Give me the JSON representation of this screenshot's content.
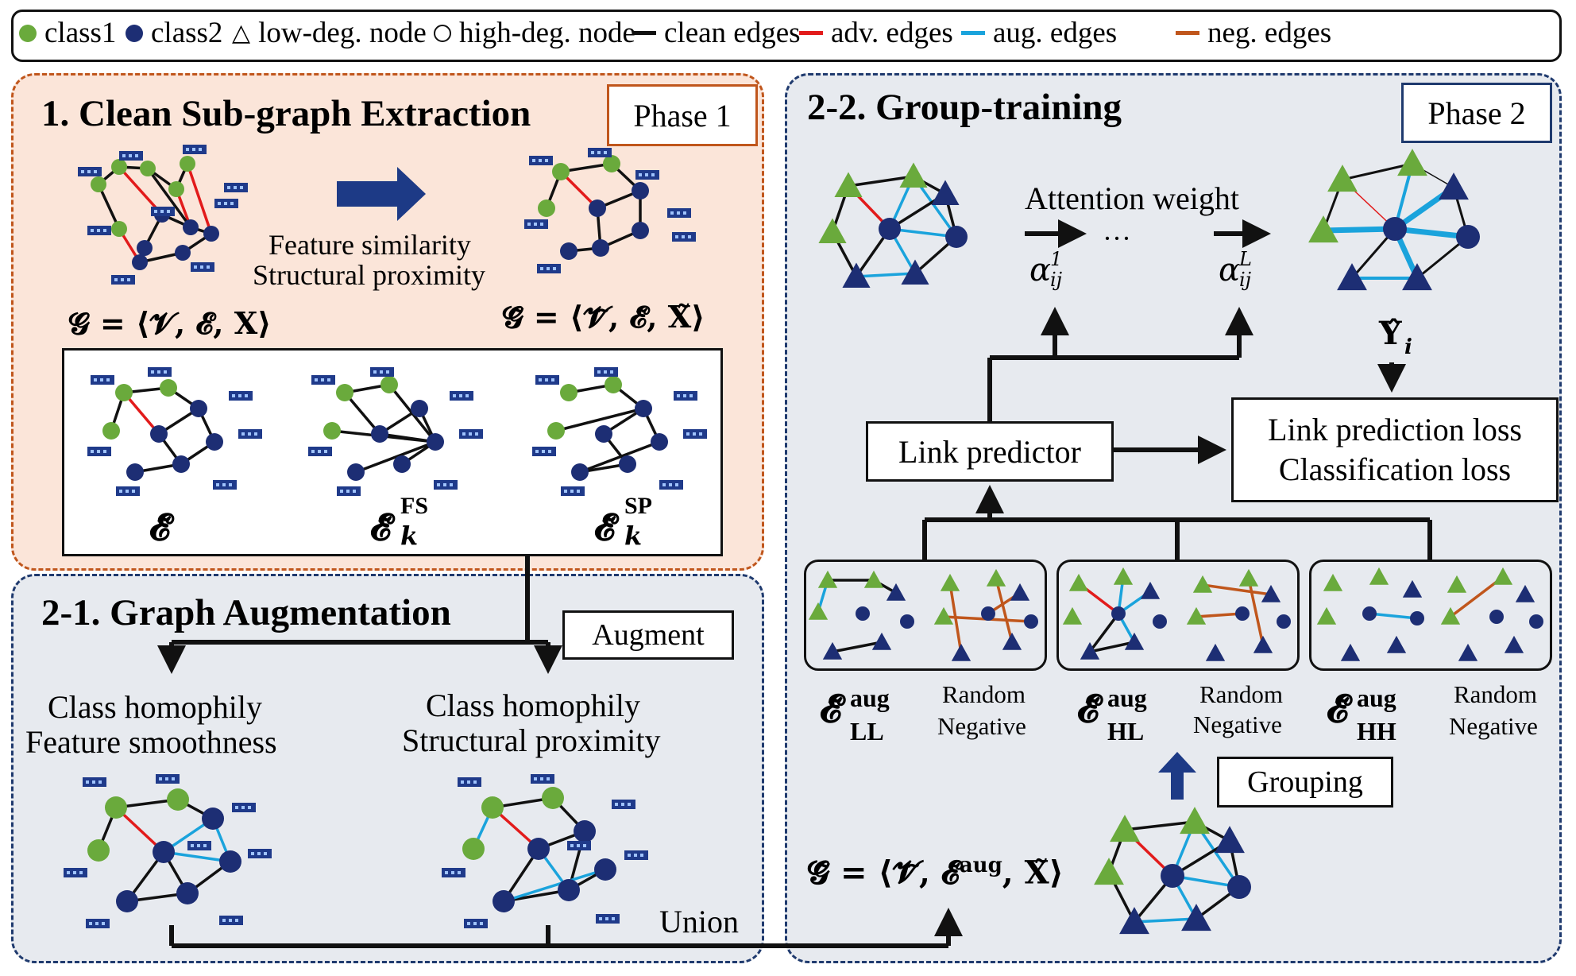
{
  "legend": {
    "class1": "class1",
    "class2": "class2",
    "low_deg": "low-deg. node",
    "high_deg": "high-deg. node",
    "clean": "clean edges",
    "adv": "adv. edges",
    "aug": "aug. edges",
    "neg": "neg. edges"
  },
  "colors": {
    "class1": "#6aaa3c",
    "class2": "#1d2e74",
    "clean": "#111111",
    "adv": "#e21b1b",
    "aug": "#1aa3dc",
    "neg": "#c0561c",
    "feat": "#1f3a8a"
  },
  "phase1": {
    "title": "1. Clean Sub-graph Extraction",
    "badge": "Phase 1",
    "criteria1": "Feature similarity",
    "criteria2": "Structural proximity",
    "g_prefix": "𝓖 = ⟨𝓥, 𝓔, 𝐗⟩",
    "gt_prefix": "𝓖̃ = ⟨𝓥̃, 𝓔̃, 𝐗̃⟩",
    "e_tilde": "𝓔̃",
    "e_fs_sup": "FS",
    "e_sp_sup": "SP",
    "e_sub_k": "k"
  },
  "phase21": {
    "title": "2-1. Graph Augmentation",
    "badge": "Augment",
    "left_line1": "Class homophily",
    "left_line2": "Feature smoothness",
    "right_line1": "Class homophily",
    "right_line2": "Structural proximity",
    "union": "Union"
  },
  "phase22": {
    "title": "2-2. Group-training",
    "badge": "Phase 2",
    "attention": "Attention weight",
    "dots": "···",
    "alpha": "α",
    "alpha_sub": "ij",
    "alpha_sup1": "1",
    "alpha_supL": "L",
    "yhat": "𝐘̂",
    "yhat_sub": "i",
    "link_predictor": "Link predictor",
    "loss1": "Link prediction loss",
    "loss2": "Classification loss",
    "grouping": "Grouping",
    "aug_sup": "aug",
    "ll": "LL",
    "hl": "HL",
    "hh": "HH",
    "random": "Random",
    "negative": "Negative",
    "gaug": "𝓖̃ = ⟨𝓥̃, 𝓔̃",
    "gaug_tail": ", 𝐗̃⟩"
  }
}
